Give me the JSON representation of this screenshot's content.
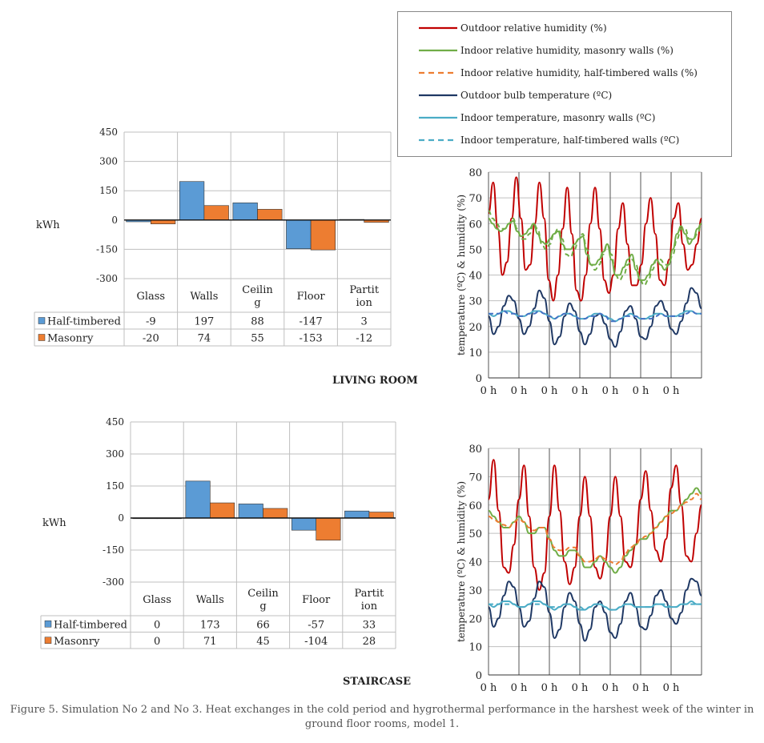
{
  "colors": {
    "half_timbered": "#5b9bd5",
    "masonry": "#ed7d31",
    "outdoor_rh": "#c00000",
    "indoor_rh_masonry": "#70ad47",
    "indoor_rh_half_timbered_living": "#70ad47",
    "indoor_rh_half_timbered_staircase": "#ed7d31",
    "outdoor_temp": "#1f3864",
    "indoor_temp_masonry": "#4bacc6",
    "indoor_temp_half_timbered_living": "#4472c4",
    "indoor_temp_half_timbered_staircase": "#4bacc6"
  },
  "legend": {
    "items": [
      "Outdoor relative humidity (%)",
      "Indoor relative humidity, masonry walls (%)",
      "Indoor relative humidity, half-timbered walls (%)",
      "Outdoor bulb temperature (ºC)",
      "Indoor temperature, masonry walls (ºC)",
      "Indoor temperature, half-timbered walls (ºC)"
    ]
  },
  "room_labels": {
    "living": "LIVING ROOM",
    "staircase": "STAIRCASE"
  },
  "caption": {
    "line1": "Figure 5. Simulation No 2 and No 3. Heat exchanges in the cold period and hygrothermal performance in the harshest week of the winter in",
    "line2": "ground floor rooms, model 1."
  },
  "chart_data": [
    {
      "type": "bar",
      "room": "LIVING ROOM",
      "ylabel": "kWh",
      "ylim": [
        -300,
        450
      ],
      "yticks": [
        "450",
        "300",
        "150",
        "0",
        "-150",
        "-300"
      ],
      "categories": [
        "Glass",
        "Walls",
        "Ceilin g",
        "Floor",
        "Partit ion"
      ],
      "series": [
        {
          "name": "Half-timbered",
          "values": [
            -9,
            197,
            88,
            -147,
            3
          ],
          "labels": [
            "-9",
            "197",
            "88",
            "-147",
            "3"
          ]
        },
        {
          "name": "Masonry",
          "values": [
            -20,
            74,
            55,
            -153,
            -12
          ],
          "labels": [
            "-20",
            "74",
            "55",
            "-153",
            "-12"
          ]
        }
      ],
      "grid": true
    },
    {
      "type": "line",
      "room": "LIVING ROOM",
      "ylabel": "temperature (ºC) & humidity (%)",
      "ylim": [
        0,
        80
      ],
      "yticks": [
        "80",
        "70",
        "60",
        "50",
        "40",
        "30",
        "20",
        "10",
        "0"
      ],
      "xtick_labels": [
        "0 h",
        "0 h",
        "0 h",
        "0 h",
        "0 h",
        "0 h",
        "0 h"
      ],
      "days": 7,
      "grid": true,
      "series": [
        {
          "key": "outdoor_rh",
          "values": [
            64,
            76,
            58,
            40,
            45,
            62,
            78,
            62,
            42,
            44,
            60,
            76,
            62,
            38,
            30,
            40,
            58,
            74,
            56,
            34,
            30,
            40,
            60,
            74,
            58,
            38,
            33,
            40,
            58,
            68,
            52,
            36,
            36,
            44,
            60,
            70,
            56,
            38,
            36,
            46,
            62,
            68,
            52,
            42,
            44,
            52,
            62
          ]
        },
        {
          "key": "indoor_rh_masonry",
          "values": [
            62,
            60,
            58,
            57,
            58,
            60,
            61,
            57,
            55,
            56,
            58,
            60,
            56,
            53,
            52,
            54,
            56,
            57,
            52,
            50,
            50,
            52,
            54,
            55,
            48,
            44,
            44,
            46,
            49,
            52,
            46,
            40,
            40,
            43,
            46,
            48,
            42,
            38,
            38,
            40,
            44,
            46,
            44,
            42,
            44,
            50,
            56,
            59,
            56,
            52,
            54,
            58,
            60
          ]
        },
        {
          "key": "indoor_rh_half_timbered",
          "values": [
            65,
            62,
            60,
            58,
            58,
            60,
            62,
            58,
            54,
            54,
            56,
            60,
            58,
            52,
            50,
            52,
            56,
            58,
            54,
            48,
            47,
            50,
            54,
            56,
            50,
            44,
            42,
            44,
            48,
            52,
            48,
            40,
            38,
            40,
            44,
            46,
            44,
            38,
            36,
            38,
            42,
            46,
            46,
            44,
            44,
            48,
            54,
            58,
            58,
            54,
            54,
            56,
            60
          ]
        },
        {
          "key": "outdoor_temp",
          "values": [
            24,
            17,
            20,
            28,
            32,
            30,
            23,
            17,
            20,
            27,
            34,
            31,
            22,
            13,
            16,
            24,
            29,
            26,
            18,
            13,
            17,
            24,
            25,
            21,
            15,
            12,
            18,
            26,
            28,
            23,
            16,
            15,
            20,
            28,
            30,
            26,
            19,
            17,
            22,
            29,
            35,
            33,
            27
          ]
        },
        {
          "key": "indoor_temp_masonry",
          "values": [
            25,
            24,
            25,
            26,
            26,
            25,
            24,
            24,
            25,
            26,
            26,
            25,
            24,
            23,
            24,
            25,
            25,
            24,
            23,
            23,
            24,
            25,
            25,
            24,
            23,
            22,
            23,
            24,
            25,
            24,
            23,
            23,
            24,
            25,
            25,
            24,
            24,
            24,
            25,
            26,
            26,
            25,
            25
          ]
        },
        {
          "key": "indoor_temp_half_timbered",
          "values": [
            25,
            25,
            25,
            26,
            25,
            25,
            24,
            24,
            25,
            25,
            26,
            25,
            24,
            23,
            24,
            25,
            25,
            24,
            23,
            23,
            24,
            24,
            25,
            24,
            22,
            22,
            23,
            24,
            24,
            24,
            23,
            23,
            23,
            24,
            25,
            24,
            24,
            24,
            24,
            25,
            26,
            25,
            25
          ]
        }
      ]
    },
    {
      "type": "bar",
      "room": "STAIRCASE",
      "ylabel": "kWh",
      "ylim": [
        -300,
        450
      ],
      "yticks": [
        "450",
        "300",
        "150",
        "0",
        "-150",
        "-300"
      ],
      "categories": [
        "Glass",
        "Walls",
        "Ceilin g",
        "Floor",
        "Partit ion"
      ],
      "series": [
        {
          "name": "Half-timbered",
          "values": [
            0,
            173,
            66,
            -57,
            33
          ],
          "labels": [
            "0",
            "173",
            "66",
            "-57",
            "33"
          ]
        },
        {
          "name": "Masonry",
          "values": [
            0,
            71,
            45,
            -104,
            28
          ],
          "labels": [
            "0",
            "71",
            "45",
            "-104",
            "28"
          ]
        }
      ],
      "grid": true
    },
    {
      "type": "line",
      "room": "STAIRCASE",
      "ylabel": "temperature (ºC) & humidity (%)",
      "ylim": [
        0,
        80
      ],
      "yticks": [
        "80",
        "70",
        "60",
        "50",
        "40",
        "30",
        "20",
        "10",
        "0"
      ],
      "xtick_labels": [
        "0 h",
        "0 h",
        "0 h",
        "0 h",
        "0 h",
        "0 h",
        "0 h"
      ],
      "days": 7,
      "grid": true,
      "series": [
        {
          "key": "outdoor_rh",
          "values": [
            62,
            76,
            58,
            38,
            36,
            46,
            62,
            74,
            56,
            38,
            30,
            36,
            56,
            74,
            58,
            40,
            32,
            38,
            56,
            70,
            56,
            38,
            34,
            40,
            56,
            70,
            56,
            40,
            38,
            46,
            62,
            72,
            58,
            44,
            40,
            48,
            66,
            74,
            60,
            42,
            40,
            50,
            60
          ]
        },
        {
          "key": "indoor_rh_masonry",
          "values": [
            58,
            56,
            54,
            52,
            52,
            54,
            56,
            54,
            50,
            50,
            52,
            52,
            48,
            44,
            42,
            42,
            44,
            44,
            42,
            38,
            38,
            40,
            42,
            40,
            38,
            36,
            38,
            42,
            44,
            46,
            48,
            48,
            50,
            52,
            54,
            56,
            58,
            58,
            60,
            62,
            64,
            66,
            64
          ]
        },
        {
          "key": "indoor_rh_half_timbered",
          "values": [
            56,
            55,
            54,
            53,
            52,
            54,
            55,
            54,
            52,
            51,
            52,
            52,
            48,
            45,
            44,
            44,
            45,
            45,
            42,
            40,
            40,
            41,
            42,
            41,
            40,
            39,
            40,
            43,
            45,
            46,
            48,
            49,
            50,
            52,
            54,
            56,
            57,
            58,
            60,
            61,
            62,
            64,
            62
          ]
        },
        {
          "key": "outdoor_temp",
          "values": [
            24,
            17,
            20,
            28,
            33,
            31,
            24,
            17,
            19,
            27,
            33,
            31,
            22,
            13,
            16,
            24,
            29,
            26,
            18,
            12,
            16,
            24,
            26,
            22,
            15,
            13,
            18,
            26,
            29,
            24,
            17,
            16,
            21,
            28,
            30,
            26,
            20,
            18,
            22,
            30,
            34,
            33,
            28
          ]
        },
        {
          "key": "indoor_temp_masonry",
          "values": [
            25,
            24,
            25,
            26,
            26,
            25,
            24,
            24,
            25,
            26,
            26,
            25,
            24,
            23,
            24,
            25,
            25,
            24,
            23,
            23,
            24,
            25,
            25,
            24,
            23,
            23,
            24,
            25,
            25,
            24,
            24,
            24,
            24,
            25,
            25,
            24,
            24,
            24,
            25,
            25,
            26,
            25,
            25
          ]
        },
        {
          "key": "indoor_temp_half_timbered",
          "values": [
            25,
            25,
            25,
            25,
            25,
            25,
            24,
            24,
            25,
            25,
            25,
            25,
            24,
            24,
            24,
            25,
            25,
            24,
            24,
            23,
            24,
            25,
            25,
            24,
            23,
            23,
            24,
            25,
            25,
            24,
            24,
            24,
            24,
            25,
            25,
            25,
            24,
            24,
            25,
            25,
            25,
            25,
            25
          ]
        }
      ]
    }
  ]
}
